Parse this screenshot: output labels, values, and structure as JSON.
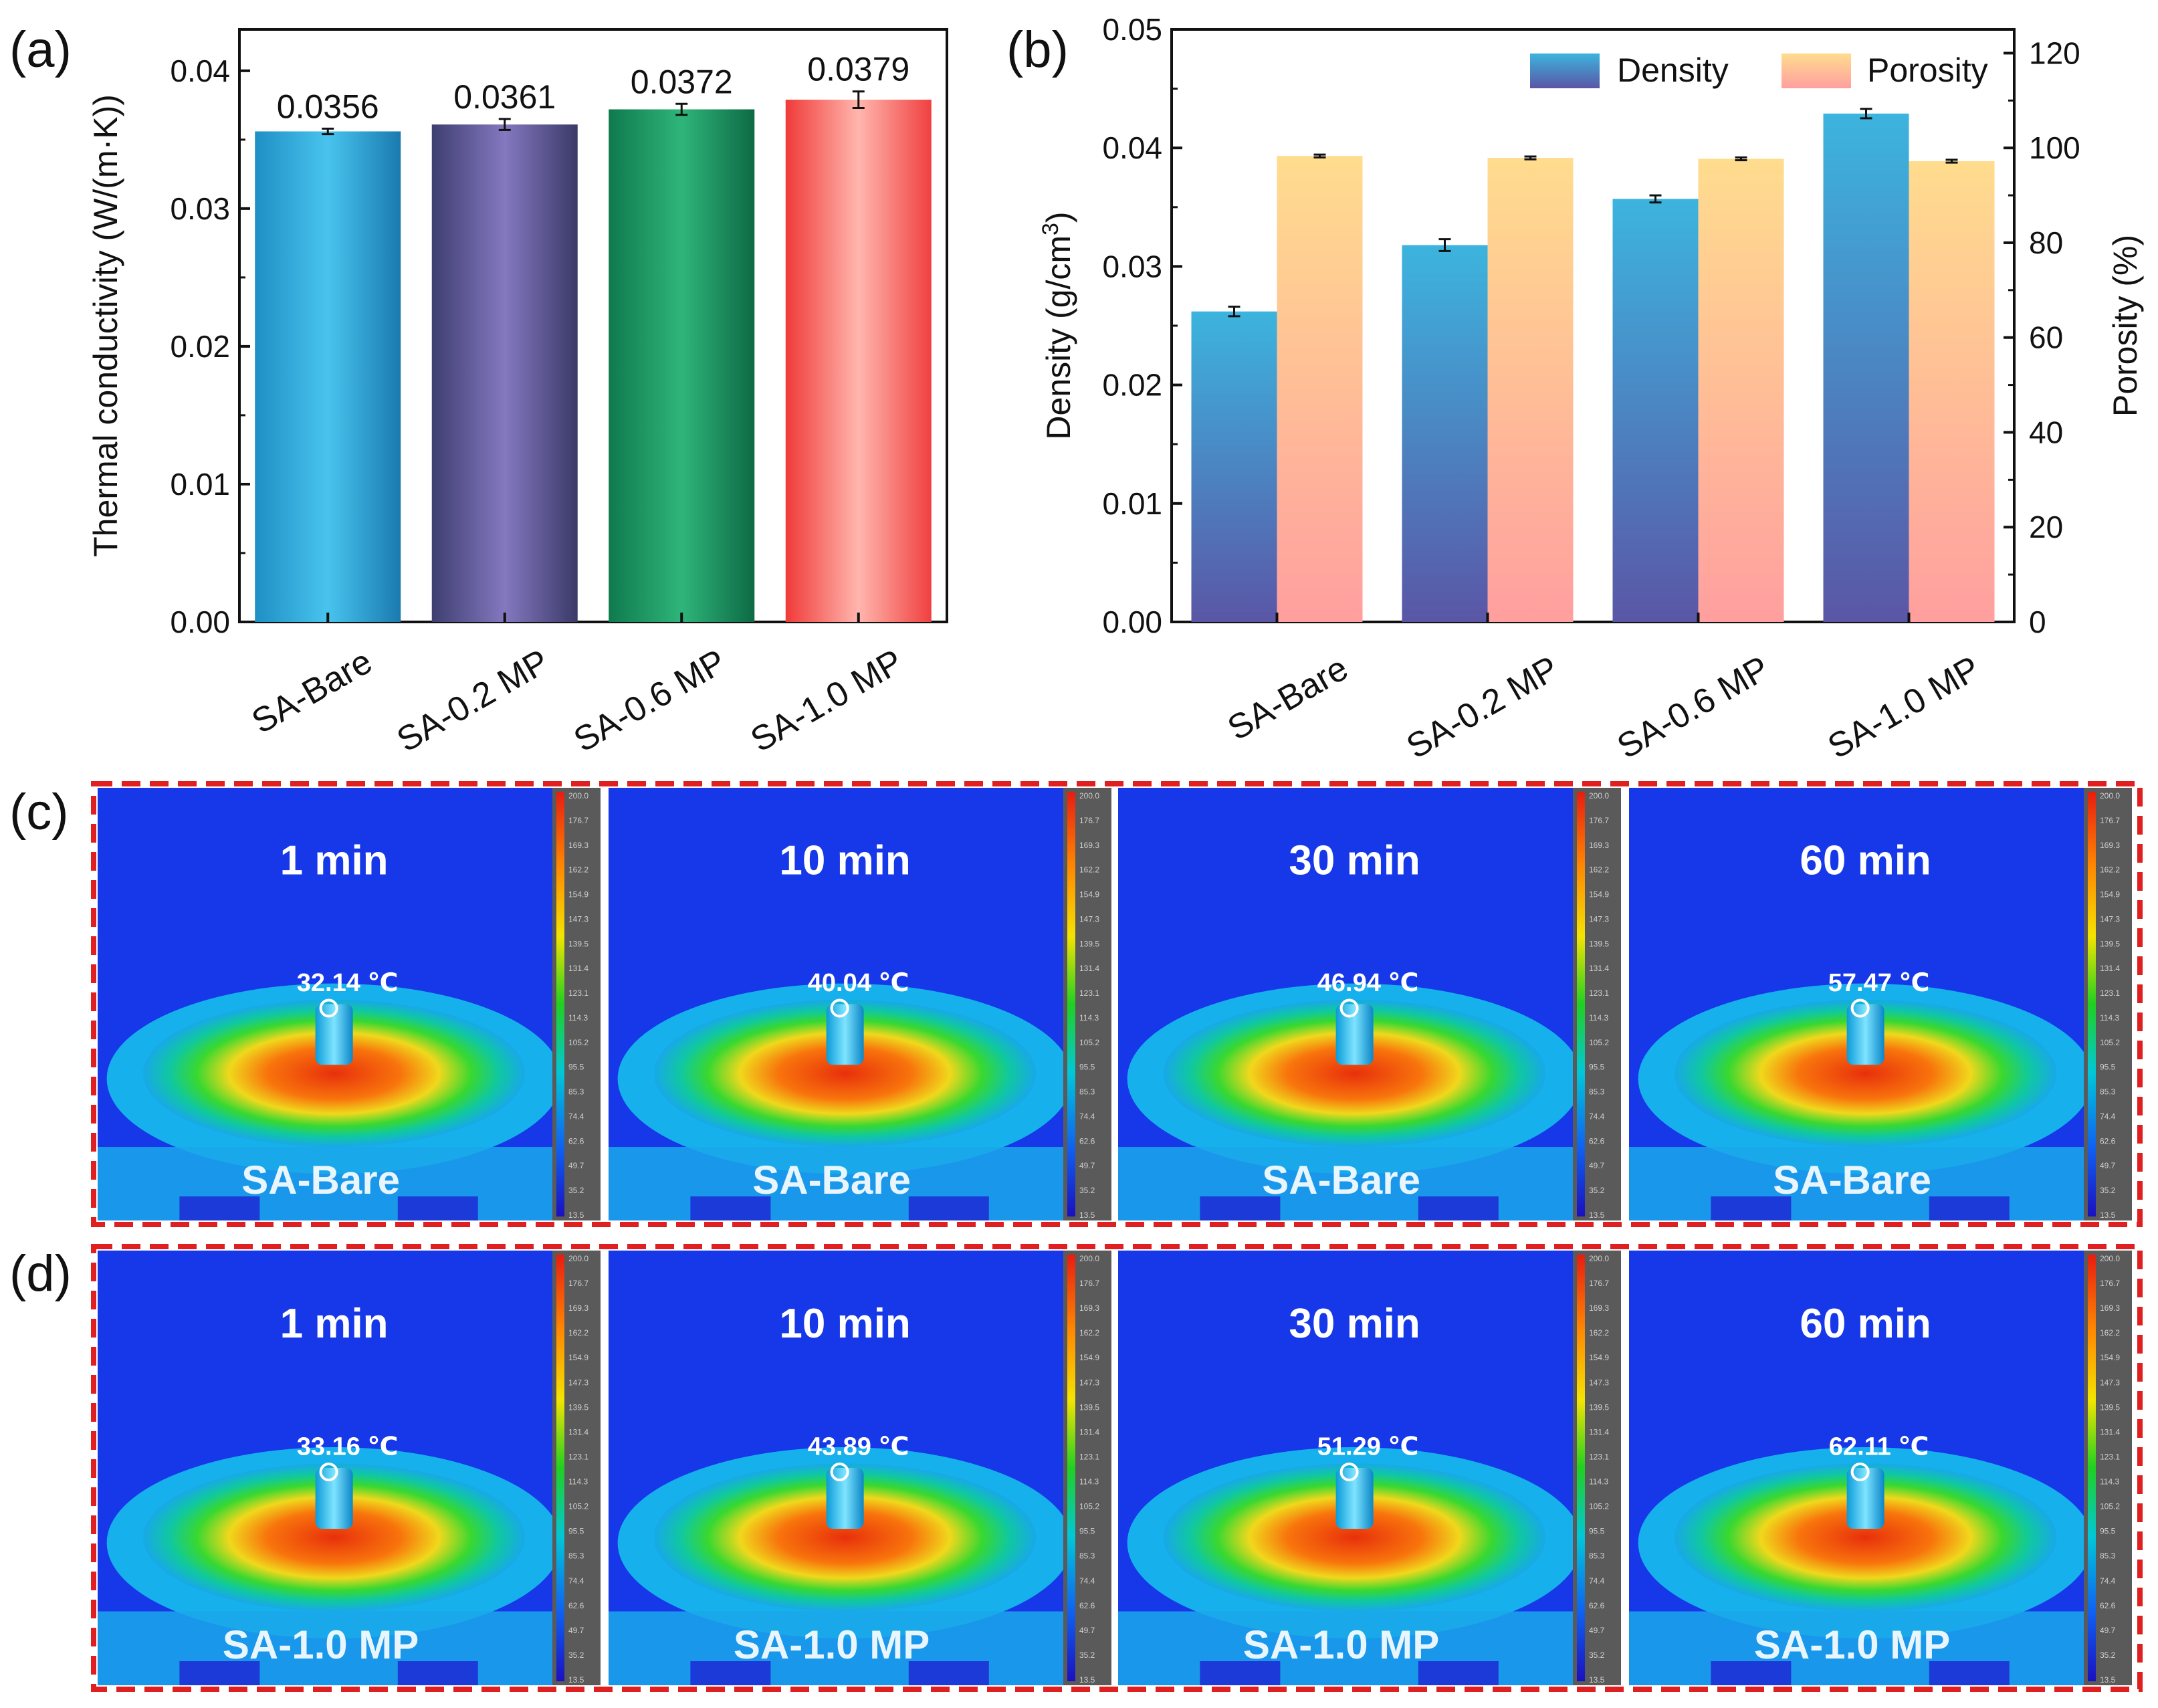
{
  "panel_labels": [
    "(a)",
    "(b)",
    "(c)",
    "(d)"
  ],
  "colors": {
    "bar_a": [
      [
        "#3fc0ec",
        "#1b7bb4"
      ],
      [
        "#8a80c4",
        "#4a4a80"
      ],
      [
        "#2fb57a",
        "#0f7a4e"
      ],
      [
        "#ffb0a8",
        "#f03a38"
      ]
    ],
    "density": [
      "#3cb2dc",
      "#5a5aa8"
    ],
    "porosity": [
      "#ffdb8e",
      "#ffa0a0"
    ],
    "frame": "#e02020"
  },
  "chart_data": [
    {
      "id": "a",
      "type": "bar",
      "categories": [
        "SA-Bare",
        "SA-0.2 MP",
        "SA-0.6 MP",
        "SA-1.0 MP"
      ],
      "values": [
        0.0356,
        0.0361,
        0.0372,
        0.0379
      ],
      "errors": [
        0.0002,
        0.0004,
        0.0004,
        0.0006
      ],
      "value_labels": [
        "0.0356",
        "0.0361",
        "0.0372",
        "0.0379"
      ],
      "ylabel": "Thermal conductivity (W/(m·K))",
      "ylim": [
        0,
        0.043
      ],
      "yticks": [
        "0.00",
        "0.01",
        "0.02",
        "0.03",
        "0.04"
      ]
    },
    {
      "id": "b",
      "type": "bar",
      "categories": [
        "SA-Bare",
        "SA-0.2 MP",
        "SA-0.6 MP",
        "SA-1.0 MP"
      ],
      "series": [
        {
          "name": "Density",
          "axis": "left",
          "values": [
            0.0262,
            0.0318,
            0.0357,
            0.0429
          ],
          "errors": [
            0.0004,
            0.0005,
            0.0003,
            0.0004
          ]
        },
        {
          "name": "Porosity",
          "axis": "right",
          "values": [
            98.3,
            97.9,
            97.7,
            97.2
          ],
          "errors": [
            0.3,
            0.3,
            0.3,
            0.3
          ]
        }
      ],
      "ylabel": "Density (g/cm",
      "ylabel_sup": "3",
      "ylabel_end": ")",
      "y2label": "Porosity (%)",
      "ylim": [
        0,
        0.05
      ],
      "y2lim": [
        0,
        125
      ],
      "yticks": [
        "0.00",
        "0.01",
        "0.02",
        "0.03",
        "0.04",
        "0.05"
      ],
      "y2ticks": [
        "0",
        "20",
        "40",
        "60",
        "80",
        "100",
        "120"
      ],
      "legend": [
        "Density",
        "Porosity"
      ]
    }
  ],
  "thermal": {
    "times": [
      "1 min",
      "10 min",
      "30 min",
      "60 min"
    ],
    "rows": [
      {
        "label": "(c)",
        "sample": "SA-Bare",
        "temps": [
          "32.14 ℃",
          "40.04 ℃",
          "46.94 ℃",
          "57.47 ℃"
        ]
      },
      {
        "label": "(d)",
        "sample": "SA-1.0 MP",
        "temps": [
          "33.16 ℃",
          "43.89 ℃",
          "51.29 ℃",
          "62.11 ℃"
        ]
      }
    ],
    "scale_values": [
      "200.0",
      "176.7",
      "169.3",
      "162.2",
      "154.9",
      "147.3",
      "139.5",
      "131.4",
      "123.1",
      "114.3",
      "105.2",
      "95.5",
      "85.3",
      "74.4",
      "62.6",
      "49.7",
      "35.2",
      "13.5"
    ]
  }
}
